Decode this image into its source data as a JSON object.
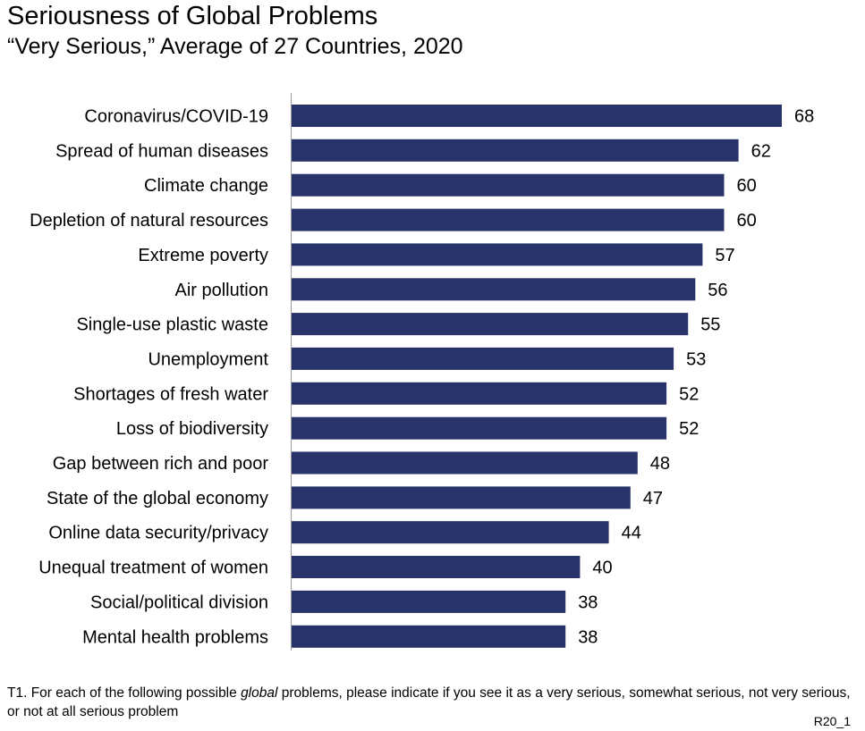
{
  "chart_data": {
    "type": "bar",
    "orientation": "horizontal",
    "title": "Seriousness of Global Problems",
    "subtitle": "“Very Serious,” Average of 27 Countries, 2020",
    "categories": [
      "Coronavirus/COVID-19",
      "Spread of human diseases",
      "Climate change",
      "Depletion of natural resources",
      "Extreme poverty",
      "Air pollution",
      "Single-use plastic waste",
      "Unemployment",
      "Shortages of fresh water",
      "Loss of biodiversity",
      "Gap between rich and poor",
      "State of the global economy",
      "Online data security/privacy",
      "Unequal treatment of women",
      "Social/political division",
      "Mental health problems"
    ],
    "values": [
      68,
      62,
      60,
      60,
      57,
      56,
      55,
      53,
      52,
      52,
      48,
      47,
      44,
      40,
      38,
      38
    ],
    "xlim": [
      0,
      68
    ],
    "bar_color": "#28336a",
    "xlabel": "",
    "ylabel": "",
    "grid": false,
    "legend": "none"
  },
  "footnote": {
    "prefix": "T1. For each of the following possible ",
    "emphasis": "global",
    "suffix": " problems, please indicate if you see it as a very serious, somewhat serious, not very serious, or not at all serious problem"
  },
  "chart_code": "R20_1"
}
